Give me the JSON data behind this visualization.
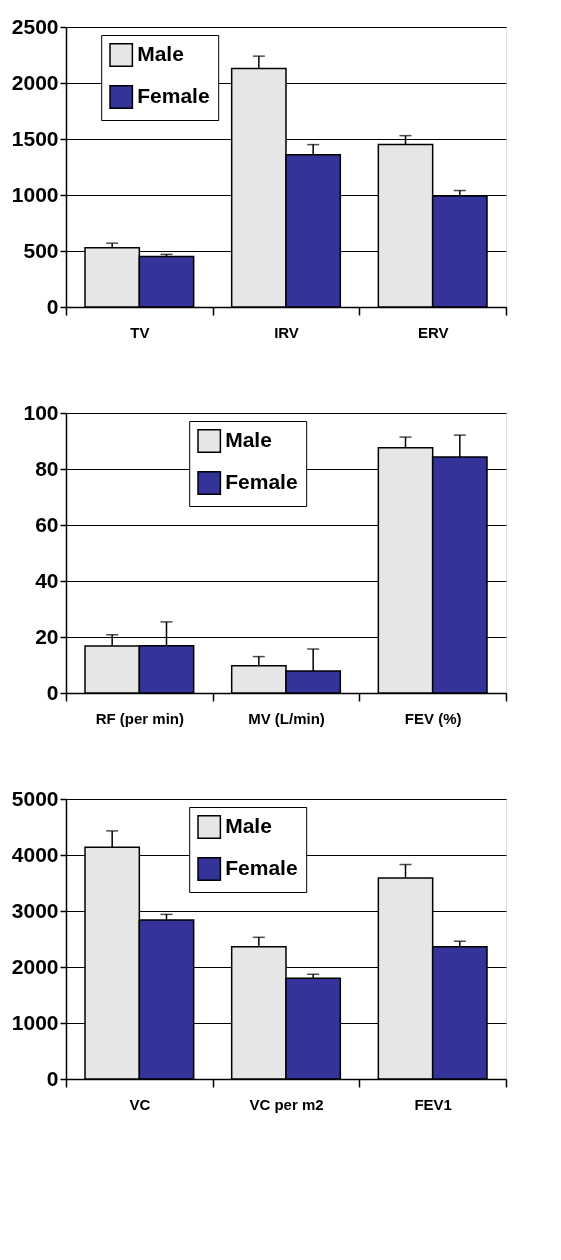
{
  "chart_data": [
    {
      "type": "bar",
      "categories": [
        "TV",
        "IRV",
        "ERV"
      ],
      "ylim": [
        0,
        2500
      ],
      "yticks": [
        0,
        500,
        1000,
        1500,
        2000,
        2500
      ],
      "grid": "y",
      "legend": "top left",
      "series": [
        {
          "name": "Male",
          "color": "#e6e6e6",
          "values": [
            530,
            2130,
            1450
          ],
          "errors": [
            [
              530,
              570
            ],
            [
              2130,
              2240
            ],
            [
              1450,
              1530
            ]
          ]
        },
        {
          "name": "Female",
          "color": "#333399",
          "values": [
            450,
            1360,
            990
          ],
          "errors": [
            [
              450,
              470
            ],
            [
              1360,
              1450
            ],
            [
              990,
              1040
            ]
          ]
        }
      ]
    },
    {
      "type": "bar",
      "categories": [
        "RF (per min)",
        "MV (L/min)",
        "FEV (%)"
      ],
      "ylim": [
        0,
        100
      ],
      "yticks": [
        0,
        20,
        40,
        60,
        80,
        100
      ],
      "grid": "y",
      "legend": "top",
      "series": [
        {
          "name": "Male",
          "color": "#e6e6e6",
          "values": [
            16.8,
            9.7,
            87.6
          ],
          "errors": [
            [
              16.8,
              20.8
            ],
            [
              9.7,
              13
            ],
            [
              87.6,
              91.4
            ]
          ]
        },
        {
          "name": "Female",
          "color": "#333399",
          "values": [
            16.9,
            7.9,
            84.3
          ],
          "errors": [
            [
              16.9,
              25.4
            ],
            [
              7.9,
              15.7
            ],
            [
              84.3,
              92.1
            ]
          ]
        }
      ]
    },
    {
      "type": "bar",
      "categories": [
        "VC",
        "VC per m2",
        "FEV1"
      ],
      "ylim": [
        0,
        5000
      ],
      "yticks": [
        0,
        1000,
        2000,
        3000,
        4000,
        5000
      ],
      "grid": "y",
      "legend": "top",
      "series": [
        {
          "name": "Male",
          "color": "#e6e6e6",
          "values": [
            4140,
            2360,
            3590
          ],
          "errors": [
            [
              4140,
              4430
            ],
            [
              2360,
              2530
            ],
            [
              3590,
              3830
            ]
          ]
        },
        {
          "name": "Female",
          "color": "#333399",
          "values": [
            2840,
            1800,
            2360
          ],
          "errors": [
            [
              2840,
              2940
            ],
            [
              1800,
              1870
            ],
            [
              2360,
              2460
            ]
          ]
        }
      ]
    }
  ]
}
